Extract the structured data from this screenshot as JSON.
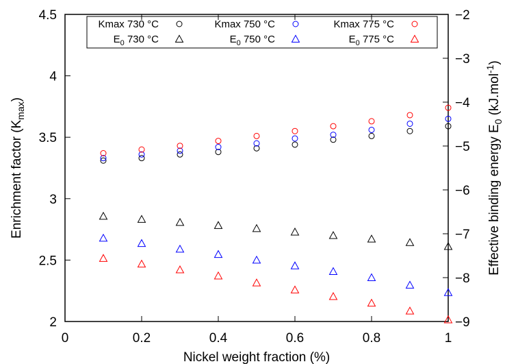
{
  "chart_data": {
    "type": "scatter",
    "title": "",
    "xlabel": "Nickel weight fraction (%)",
    "ylabel_left": {
      "text": "Enrichment factor (K",
      "sub": "max",
      "tail": ")"
    },
    "ylabel_right": {
      "text": "Effective binding energy E",
      "sub": "0",
      "tail": " (kJ.mol",
      "sup": "-1",
      "end": ")"
    },
    "xlim": [
      0,
      1
    ],
    "ylim_left": [
      2,
      4.5
    ],
    "ylim_right": [
      -9,
      -2
    ],
    "x_ticks": [
      "0",
      "0.2",
      "0.4",
      "0.6",
      "0.8",
      "1"
    ],
    "y_left_ticks": [
      "2",
      "2.5",
      "3",
      "3.5",
      "4",
      "4.5"
    ],
    "y_right_ticks": [
      "−9",
      "−8",
      "−7",
      "−6",
      "−5",
      "−4",
      "−3",
      "−2"
    ],
    "grid": false,
    "legend_position": "top",
    "x": [
      0.1,
      0.2,
      0.3,
      0.4,
      0.5,
      0.6,
      0.7,
      0.8,
      0.9,
      1.0
    ],
    "series": [
      {
        "name": "Kmax 730 °C",
        "marker": "circle",
        "axis": "left",
        "color": "#000000",
        "values": [
          3.31,
          3.33,
          3.36,
          3.38,
          3.41,
          3.44,
          3.48,
          3.51,
          3.55,
          3.59
        ]
      },
      {
        "name": "Kmax 750 °C",
        "marker": "circle",
        "axis": "left",
        "color": "#0000ff",
        "values": [
          3.33,
          3.36,
          3.39,
          3.42,
          3.45,
          3.49,
          3.52,
          3.56,
          3.61,
          3.65
        ]
      },
      {
        "name": "Kmax 775 °C",
        "marker": "circle",
        "axis": "left",
        "color": "#ff0000",
        "values": [
          3.37,
          3.4,
          3.43,
          3.47,
          3.51,
          3.55,
          3.59,
          3.63,
          3.68,
          3.74
        ]
      },
      {
        "name": "E",
        "name_sub": "0",
        "name_tail": " 730 °C",
        "marker": "triangle",
        "axis": "right",
        "color": "#000000",
        "values": [
          -6.6,
          -6.67,
          -6.74,
          -6.81,
          -6.88,
          -6.96,
          -7.04,
          -7.12,
          -7.2,
          -7.29
        ]
      },
      {
        "name": "E",
        "name_sub": "0",
        "name_tail": " 750 °C",
        "marker": "triangle",
        "axis": "right",
        "color": "#0000ff",
        "values": [
          -7.1,
          -7.22,
          -7.35,
          -7.47,
          -7.6,
          -7.73,
          -7.86,
          -8.0,
          -8.17,
          -8.34
        ]
      },
      {
        "name": "E",
        "name_sub": "0",
        "name_tail": " 775 °C",
        "marker": "triangle",
        "axis": "right",
        "color": "#ff0000",
        "values": [
          -7.56,
          -7.69,
          -7.82,
          -7.96,
          -8.12,
          -8.28,
          -8.43,
          -8.58,
          -8.76,
          -8.96
        ]
      }
    ]
  }
}
